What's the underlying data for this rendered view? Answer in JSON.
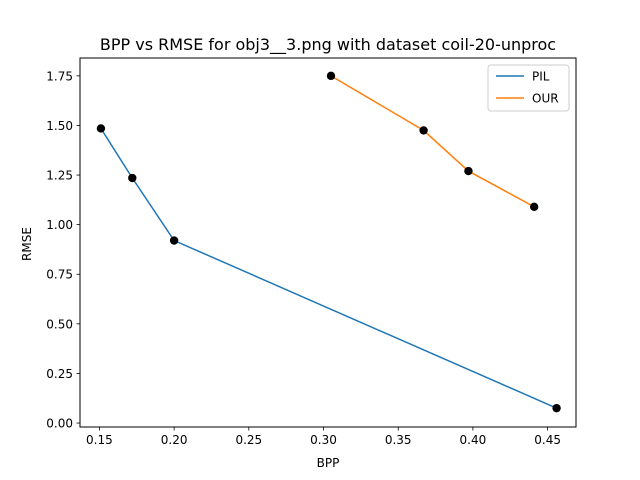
{
  "chart_data": {
    "type": "line",
    "title": "BPP vs RMSE for obj3__3.png with dataset coil-20-unproc",
    "xlabel": "BPP",
    "ylabel": "RMSE",
    "xlim": [
      0.137,
      0.469
    ],
    "ylim": [
      -0.02,
      1.84
    ],
    "xticks": [
      0.15,
      0.2,
      0.25,
      0.3,
      0.35,
      0.4,
      0.45
    ],
    "xtick_labels": [
      "0.15",
      "0.20",
      "0.25",
      "0.30",
      "0.35",
      "0.40",
      "0.45"
    ],
    "yticks": [
      0.0,
      0.25,
      0.5,
      0.75,
      1.0,
      1.25,
      1.5,
      1.75
    ],
    "ytick_labels": [
      "0.00",
      "0.25",
      "0.50",
      "0.75",
      "1.00",
      "1.25",
      "1.50",
      "1.75"
    ],
    "grid": false,
    "legend_position": "top-right",
    "series": [
      {
        "name": "PIL",
        "color": "#1f77b4",
        "x": [
          0.151,
          0.172,
          0.2,
          0.456
        ],
        "y": [
          1.485,
          1.235,
          0.92,
          0.075
        ]
      },
      {
        "name": "OUR",
        "color": "#ff7f0e",
        "x": [
          0.305,
          0.367,
          0.397,
          0.441
        ],
        "y": [
          1.75,
          1.475,
          1.27,
          1.09
        ]
      }
    ],
    "marker_color": "#000000"
  }
}
